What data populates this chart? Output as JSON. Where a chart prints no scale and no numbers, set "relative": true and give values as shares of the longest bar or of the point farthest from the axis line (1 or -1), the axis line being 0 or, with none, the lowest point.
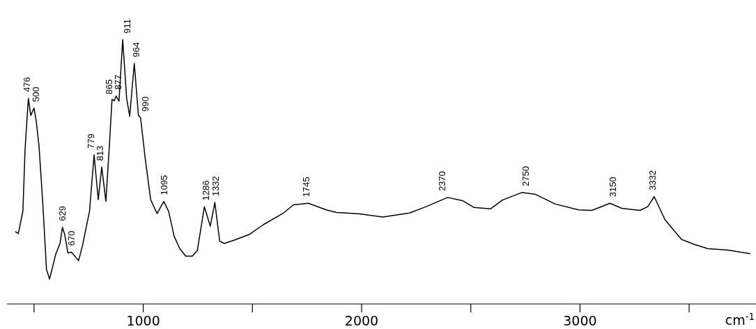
{
  "chart_data": {
    "type": "line",
    "relative": true,
    "marker": "none",
    "xlabel": "cm$^{-1}$",
    "xlim": [
      376,
      3806
    ],
    "xticks": [
      {
        "value": 500,
        "label": null
      },
      1000,
      {
        "value": 1500,
        "label": null
      },
      2000,
      {
        "value": 2500,
        "label": null
      },
      3000,
      {
        "value": 3500,
        "label": null
      }
    ],
    "x": [
      414,
      428,
      449,
      459,
      474,
      485,
      500,
      510,
      523,
      541,
      557,
      571,
      600,
      619,
      630,
      640,
      655,
      671,
      704,
      722,
      754,
      775,
      794,
      810,
      829,
      844,
      857,
      868,
      876,
      889,
      906,
      924,
      938,
      959,
      978,
      988,
      1009,
      1034,
      1063,
      1094,
      1116,
      1142,
      1169,
      1195,
      1225,
      1248,
      1280,
      1307,
      1328,
      1350,
      1371,
      1419,
      1488,
      1550,
      1642,
      1688,
      1756,
      1839,
      1885,
      1991,
      2097,
      2219,
      2295,
      2394,
      2462,
      2515,
      2591,
      2645,
      2735,
      2796,
      2887,
      2994,
      3054,
      3138,
      3191,
      3275,
      3310,
      3340,
      3389,
      3465,
      3525,
      3586,
      3677,
      3780
    ],
    "series": [
      {
        "color": "#000000",
        "values": [
          0.274,
          0.266,
          0.352,
          0.587,
          0.778,
          0.713,
          0.741,
          0.692,
          0.595,
          0.368,
          0.13,
          0.094,
          0.19,
          0.229,
          0.29,
          0.264,
          0.193,
          0.196,
          0.164,
          0.221,
          0.351,
          0.564,
          0.395,
          0.518,
          0.388,
          0.586,
          0.774,
          0.769,
          0.787,
          0.767,
          1.0,
          0.778,
          0.71,
          0.91,
          0.713,
          0.704,
          0.551,
          0.395,
          0.342,
          0.388,
          0.351,
          0.255,
          0.207,
          0.181,
          0.181,
          0.203,
          0.368,
          0.294,
          0.384,
          0.238,
          0.229,
          0.242,
          0.264,
          0.3,
          0.344,
          0.375,
          0.381,
          0.356,
          0.346,
          0.341,
          0.329,
          0.344,
          0.368,
          0.403,
          0.391,
          0.365,
          0.36,
          0.393,
          0.422,
          0.415,
          0.378,
          0.356,
          0.354,
          0.381,
          0.362,
          0.354,
          0.368,
          0.406,
          0.319,
          0.244,
          0.225,
          0.209,
          0.204,
          0.19
        ]
      }
    ],
    "annotations": [
      {
        "text": "476",
        "x": 476,
        "y": 0.778
      },
      {
        "text": "500",
        "x": 500,
        "y": 0.741
      },
      {
        "text": "629",
        "x": 629,
        "y": 0.29
      },
      {
        "text": "670",
        "x": 670,
        "y": 0.196
      },
      {
        "text": "779",
        "x": 779,
        "y": 0.564
      },
      {
        "text": "813",
        "x": 813,
        "y": 0.518
      },
      {
        "text": "865",
        "x": 865,
        "y": 0.769
      },
      {
        "text": "877",
        "x": 877,
        "y": 0.787
      },
      {
        "text": "911",
        "x": 911,
        "y": 1.0
      },
      {
        "text": "964",
        "x": 964,
        "y": 0.91
      },
      {
        "text": "990",
        "x": 990,
        "y": 0.704
      },
      {
        "text": "1095",
        "x": 1095,
        "y": 0.388
      },
      {
        "text": "1286",
        "x": 1286,
        "y": 0.368
      },
      {
        "text": "1332",
        "x": 1332,
        "y": 0.384
      },
      {
        "text": "1745",
        "x": 1745,
        "y": 0.381
      },
      {
        "text": "2370",
        "x": 2370,
        "y": 0.403
      },
      {
        "text": "2750",
        "x": 2750,
        "y": 0.422
      },
      {
        "text": "3150",
        "x": 3150,
        "y": 0.381
      },
      {
        "text": "3332",
        "x": 3332,
        "y": 0.406
      }
    ]
  }
}
